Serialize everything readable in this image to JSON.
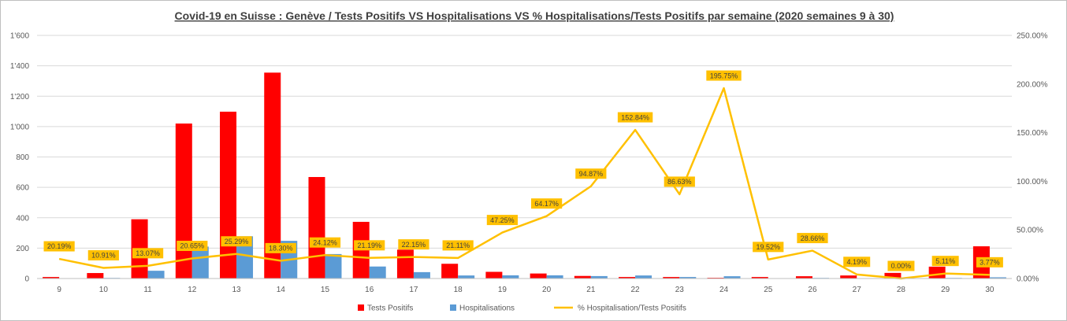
{
  "chart_data": {
    "type": "bar",
    "title": "Covid-19 en Suisse : Genève / Tests Positifs VS Hospitalisations VS % Hospitalisations/Tests Positifs par semaine (2020 semaines 9 à 30)",
    "categories": [
      "9",
      "10",
      "11",
      "12",
      "13",
      "14",
      "15",
      "16",
      "17",
      "18",
      "19",
      "20",
      "21",
      "22",
      "23",
      "24",
      "25",
      "26",
      "27",
      "28",
      "29",
      "30"
    ],
    "y_left": {
      "ylim": [
        0,
        1600
      ],
      "ticks": [
        "0",
        "200",
        "400",
        "600",
        "800",
        "1'000",
        "1'200",
        "1'400",
        "1'600"
      ]
    },
    "y_right": {
      "ylim": [
        0,
        250
      ],
      "ticks": [
        "0.00%",
        "50.00%",
        "100.00%",
        "150.00%",
        "200.00%",
        "250.00%"
      ]
    },
    "grid": true,
    "legend_position": "bottom",
    "series": [
      {
        "name": "Tests Positifs",
        "kind": "bar",
        "axis": "left",
        "color": "#ff0000",
        "values": [
          10,
          36,
          390,
          1020,
          1098,
          1355,
          668,
          373,
          190,
          97,
          44,
          33,
          17,
          10,
          10,
          5,
          10,
          15,
          20,
          37,
          78,
          212
        ]
      },
      {
        "name": "Hospitalisations",
        "kind": "bar",
        "axis": "left",
        "color": "#5b9bd5",
        "values": [
          2,
          4,
          51,
          210,
          278,
          248,
          161,
          79,
          42,
          20,
          21,
          21,
          16,
          20,
          10,
          15,
          2,
          4,
          1,
          0,
          4,
          8
        ]
      },
      {
        "name": "% Hospitalisation/Tests Positifs",
        "kind": "line",
        "axis": "right",
        "color": "#ffc000",
        "values": [
          20.19,
          10.91,
          13.07,
          20.65,
          25.29,
          18.3,
          24.12,
          21.19,
          22.15,
          21.11,
          47.25,
          64.17,
          94.87,
          152.84,
          86.63,
          195.75,
          19.52,
          28.66,
          4.19,
          0.0,
          5.11,
          3.77
        ],
        "labels": [
          "20.19%",
          "10.91%",
          "13.07%",
          "20.65%",
          "25.29%",
          "18.30%",
          "24.12%",
          "21.19%",
          "22.15%",
          "21.11%",
          "47.25%",
          "64.17%",
          "94.87%",
          "152.84%",
          "86.63%",
          "195.75%",
          "19.52%",
          "28.66%",
          "4.19%",
          "0.00%",
          "5.11%",
          "3.77%"
        ]
      }
    ]
  }
}
